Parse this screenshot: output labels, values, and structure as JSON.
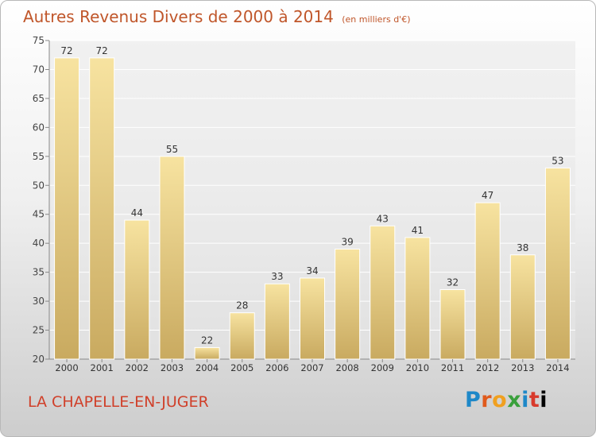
{
  "title": "Autres Revenus Divers de 2000 à 2014",
  "title_unit": "(en milliers d'€)",
  "commune": "LA CHAPELLE-EN-JUGER",
  "logo_letters": [
    "P",
    "r",
    "o",
    "x",
    "i",
    "t",
    "i"
  ],
  "colors": {
    "bar_light": "#f7e3a0",
    "bar_dark": "#c9aa60",
    "title": "#c0562a",
    "commune": "#d0402a"
  },
  "chart_data": {
    "type": "bar",
    "categories": [
      "2000",
      "2001",
      "2002",
      "2003",
      "2004",
      "2005",
      "2006",
      "2007",
      "2008",
      "2009",
      "2010",
      "2011",
      "2012",
      "2013",
      "2014"
    ],
    "values": [
      72,
      72,
      44,
      55,
      22,
      28,
      33,
      34,
      39,
      43,
      41,
      32,
      47,
      38,
      53
    ],
    "ylim": [
      20,
      75
    ],
    "yticks": [
      20,
      25,
      30,
      35,
      40,
      45,
      50,
      55,
      60,
      65,
      70,
      75
    ],
    "grid": true,
    "data_labels": true
  }
}
